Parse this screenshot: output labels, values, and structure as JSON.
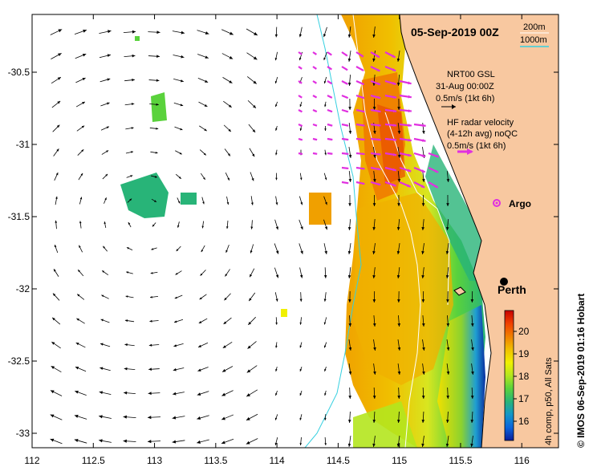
{
  "map": {
    "title": "05-Sep-2019 00Z",
    "credit": "© IMOS 06-Sep-2019 01:16 Hobart",
    "x_ticks": [
      "112",
      "112.5",
      "113",
      "113.5",
      "114",
      "114.5",
      "115",
      "115.5",
      "116"
    ],
    "y_ticks": [
      "-30.5",
      "-31",
      "-31.5",
      "-32",
      "-32.5",
      "-33"
    ],
    "x_range": [
      112,
      116.3
    ],
    "y_range": [
      -33.1,
      -30.1
    ]
  },
  "legend": {
    "contour_200": "200m",
    "contour_1000": "1000m",
    "model_line1": "NRT00 GSL",
    "model_line2": "31-Aug 00:00Z",
    "model_scale": "0.5m/s (1kt 6h)",
    "radar_line1": "HF radar velocity",
    "radar_line2": "(4-12h avg) noQC",
    "radar_scale": "0.5m/s (1kt 6h)",
    "argo_label": "Argo",
    "city_label": "Perth"
  },
  "colorbar": {
    "ticks": [
      "20",
      "19",
      "18",
      "17",
      "16"
    ],
    "label": "4h comp, p50, All Sats",
    "colors": [
      "#c80000",
      "#f04000",
      "#f08000",
      "#f0c000",
      "#f0f000",
      "#b4e61e",
      "#5ad23c",
      "#28b478",
      "#1496c8",
      "#0a64dc",
      "#0a1e9b"
    ]
  },
  "colors": {
    "land": "#f8c8a0",
    "contour": "#36d0e0",
    "radar_arrow": "#e030e0",
    "model_arrow": "#000000"
  }
}
